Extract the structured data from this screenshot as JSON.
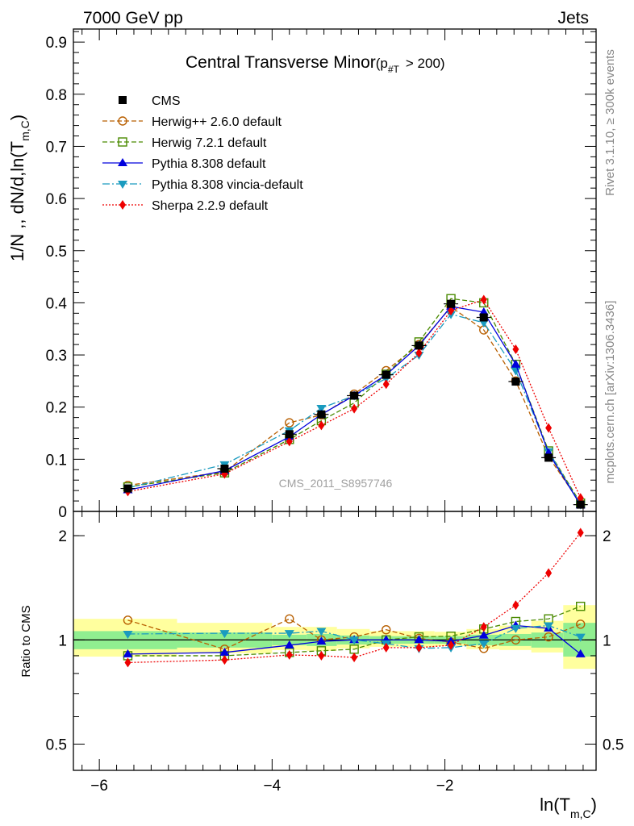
{
  "header": {
    "left": "7000 GeV pp",
    "right": "Jets"
  },
  "side_text": {
    "right_top": "Rivet 3.1.10, ≥ 300k events",
    "right_bottom": "mcplots.cern.ch [arXiv:1306.3436]"
  },
  "watermark": "CMS_2011_S8957746",
  "chart_data": [
    {
      "type": "line",
      "panel": "main",
      "title": "Central Transverse Minor",
      "title_suffix": "(p",
      "title_sub": "#T",
      "title_cut": "> 200)",
      "ylabel": "1/N ,, dN/d,ln(T",
      "ylabel_sub": "m,C",
      "ylabel_end": ")",
      "xlim": [
        -6.3,
        -0.25
      ],
      "ylim": [
        0,
        0.925
      ],
      "grid": false,
      "legend_position": "top-left",
      "y_ticks": [
        0,
        0.1,
        0.2,
        0.3,
        0.4,
        0.5,
        0.6,
        0.7,
        0.8,
        0.9
      ],
      "y_tick_labels": [
        "0",
        "0.1",
        "0.2",
        "0.3",
        "0.4",
        "0.5",
        "0.6",
        "0.7",
        "0.8",
        "0.9"
      ],
      "x": [
        -5.67,
        -4.55,
        -3.8,
        -3.43,
        -3.05,
        -2.68,
        -2.3,
        -1.93,
        -1.55,
        -1.18,
        -0.8,
        -0.43
      ],
      "series": [
        {
          "name": "CMS",
          "color": "#000000",
          "marker": "square-filled",
          "dash": "none",
          "values": [
            0.044,
            0.082,
            0.148,
            0.186,
            0.222,
            0.262,
            0.318,
            0.398,
            0.372,
            0.249,
            0.103,
            0.013
          ]
        },
        {
          "name": "Herwig++ 2.6.0 default",
          "color": "#b85f00",
          "marker": "circle-open",
          "dash": "6,3",
          "values": [
            0.05,
            0.076,
            0.17,
            0.185,
            0.225,
            0.27,
            0.32,
            0.392,
            0.348,
            0.25,
            0.105,
            0.015
          ]
        },
        {
          "name": "Herwig 7.2.1 default",
          "color": "#4a8a00",
          "marker": "square-open",
          "dash": "6,3",
          "values": [
            0.047,
            0.074,
            0.138,
            0.174,
            0.208,
            0.263,
            0.325,
            0.408,
            0.4,
            0.282,
            0.116,
            0.016
          ]
        },
        {
          "name": "Pythia 8.308 default",
          "color": "#0000dd",
          "marker": "triangle-up",
          "dash": "none",
          "values": [
            0.041,
            0.078,
            0.143,
            0.186,
            0.222,
            0.262,
            0.318,
            0.393,
            0.382,
            0.282,
            0.112,
            0.012
          ]
        },
        {
          "name": "Pythia 8.308 vincia-default",
          "color": "#1a9bbf",
          "marker": "triangle-down",
          "dash": "9,3,2,3",
          "values": [
            0.045,
            0.09,
            0.155,
            0.198,
            0.222,
            0.255,
            0.3,
            0.378,
            0.362,
            0.27,
            0.115,
            0.013
          ]
        },
        {
          "name": "Sherpa 2.2.9 default",
          "color": "#ee0000",
          "marker": "diamond",
          "dash": "2,2",
          "values": [
            0.038,
            0.072,
            0.134,
            0.165,
            0.197,
            0.244,
            0.304,
            0.385,
            0.406,
            0.311,
            0.16,
            0.026
          ]
        }
      ]
    },
    {
      "type": "line",
      "panel": "ratio",
      "ylabel": "Ratio to CMS",
      "xlabel": "ln(T",
      "xlabel_sub": "m,C",
      "xlabel_end": ")",
      "scale": "log",
      "ylim": [
        0.42,
        2.35
      ],
      "reference_line": 1,
      "y_tick_labels": {
        "major": [
          {
            "value": 0.5,
            "label": "0.5"
          },
          {
            "value": 1,
            "label": "1"
          },
          {
            "value": 2,
            "label": "2"
          }
        ]
      },
      "x_ticks": [
        -6,
        -4,
        -2
      ],
      "x_tick_labels": [
        "−6",
        "−4",
        "−2"
      ],
      "x_edges": [
        -6.3,
        -5.1,
        -4.0,
        -3.6,
        -3.25,
        -2.87,
        -2.5,
        -2.12,
        -1.75,
        -1.37,
        -1.0,
        -0.63,
        -0.25
      ],
      "band_inner": {
        "color": "#90ee90",
        "lo": [
          0.94,
          0.95,
          0.965,
          0.96,
          0.97,
          0.975,
          0.975,
          0.975,
          0.965,
          0.96,
          0.95,
          0.895
        ],
        "hi": [
          1.06,
          1.05,
          1.035,
          1.04,
          1.03,
          1.025,
          1.025,
          1.025,
          1.035,
          1.04,
          1.05,
          1.12
        ]
      },
      "band_outer": {
        "color": "#ffff9e",
        "lo": [
          0.895,
          0.915,
          0.935,
          0.93,
          0.945,
          0.955,
          0.955,
          0.96,
          0.94,
          0.935,
          0.92,
          0.825
        ],
        "hi": [
          1.15,
          1.12,
          1.09,
          1.09,
          1.075,
          1.06,
          1.06,
          1.055,
          1.075,
          1.1,
          1.135,
          1.26
        ]
      },
      "series": [
        {
          "name": "Herwig++ 2.6.0 default",
          "values": [
            1.14,
            0.94,
            1.15,
            1.0,
            1.02,
            1.07,
            1.01,
            0.985,
            0.945,
            1.0,
            1.02,
            1.11
          ]
        },
        {
          "name": "Herwig 7.2.1 default",
          "values": [
            0.9,
            0.9,
            0.92,
            0.93,
            0.94,
            1.0,
            1.02,
            1.025,
            1.075,
            1.13,
            1.15,
            1.25
          ]
        },
        {
          "name": "Pythia 8.308 default",
          "values": [
            0.91,
            0.92,
            0.965,
            0.99,
            1.0,
            1.0,
            1.0,
            0.99,
            1.03,
            1.1,
            1.08,
            0.91
          ]
        },
        {
          "name": "Pythia 8.308 vincia-default",
          "values": [
            1.04,
            1.045,
            1.045,
            1.06,
            1.0,
            0.975,
            0.945,
            0.95,
            0.975,
            1.08,
            1.1,
            1.02
          ]
        },
        {
          "name": "Sherpa 2.2.9 default",
          "values": [
            0.86,
            0.875,
            0.905,
            0.9,
            0.89,
            0.95,
            0.95,
            0.965,
            1.09,
            1.26,
            1.56,
            2.04
          ]
        }
      ]
    }
  ]
}
